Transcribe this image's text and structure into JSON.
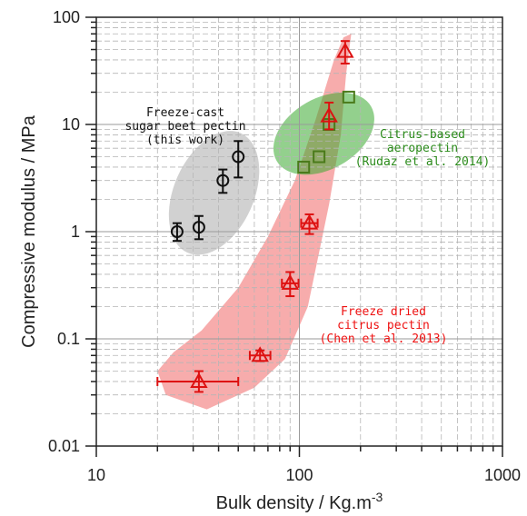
{
  "chart_data": {
    "type": "scatter",
    "title": "",
    "xlabel": "Bulk density / Kg.m",
    "xlabel_superscript": "-3",
    "ylabel": "Compressive modulus / MPa",
    "x_scale": "log",
    "y_scale": "log",
    "xlim": [
      10,
      1000
    ],
    "ylim": [
      0.01,
      100
    ],
    "grid": true,
    "x_ticks": [
      10,
      100,
      1000
    ],
    "x_tick_labels": [
      "10",
      "100",
      "1000"
    ],
    "y_ticks": [
      0.01,
      0.1,
      1,
      10,
      100
    ],
    "y_tick_labels": [
      "0.01",
      "0.1",
      "1",
      "10",
      "100"
    ],
    "series": [
      {
        "marker": "circle",
        "color": "#111111",
        "points": [
          {
            "x": 25,
            "y": 1.0,
            "xerr": [
              0,
              0
            ],
            "yerr": [
              0.82,
              1.2
            ]
          },
          {
            "x": 32,
            "y": 1.1,
            "xerr": [
              0,
              0
            ],
            "yerr": [
              0.85,
              1.4
            ]
          },
          {
            "x": 42,
            "y": 3.0,
            "xerr": [
              0,
              0
            ],
            "yerr": [
              2.3,
              3.8
            ]
          },
          {
            "x": 50,
            "y": 5.0,
            "xerr": [
              0,
              0
            ],
            "yerr": [
              3.2,
              7.0
            ]
          }
        ]
      },
      {
        "marker": "square",
        "color": "#4a7a1a",
        "points": [
          {
            "x": 105,
            "y": 4.0,
            "xerr": [
              0,
              0
            ],
            "yerr": [
              0,
              0
            ]
          },
          {
            "x": 125,
            "y": 5.0,
            "xerr": [
              0,
              0
            ],
            "yerr": [
              0,
              0
            ]
          },
          {
            "x": 140,
            "y": 10.0,
            "xerr": [
              0,
              0
            ],
            "yerr": [
              0,
              0
            ]
          },
          {
            "x": 175,
            "y": 18.0,
            "xerr": [
              0,
              0
            ],
            "yerr": [
              0,
              0
            ]
          }
        ]
      },
      {
        "marker": "triangle",
        "color": "#dd1111",
        "points": [
          {
            "x": 32,
            "y": 0.04,
            "xerr": [
              20,
              50
            ],
            "yerr": [
              0.032,
              0.05
            ]
          },
          {
            "x": 64,
            "y": 0.07,
            "xerr": [
              57,
              72
            ],
            "yerr": [
              0.062,
              0.078
            ]
          },
          {
            "x": 90,
            "y": 0.33,
            "xerr": [
              82,
              99
            ],
            "yerr": [
              0.25,
              0.42
            ]
          },
          {
            "x": 112,
            "y": 1.2,
            "xerr": [
              102,
              123
            ],
            "yerr": [
              0.95,
              1.45
            ]
          },
          {
            "x": 140,
            "y": 12.0,
            "xerr": [
              0,
              0
            ],
            "yerr": [
              9.0,
              16.0
            ]
          },
          {
            "x": 168,
            "y": 48.0,
            "xerr": [
              0,
              0
            ],
            "yerr": [
              37.0,
              60.0
            ]
          }
        ]
      }
    ],
    "annotations": [
      {
        "lines": [
          "Freeze-cast",
          "sugar beet pectin",
          "(this work)"
        ],
        "color": "#111111"
      },
      {
        "lines": [
          "Citrus-based",
          "aeropectin",
          "(Rudaz et al. 2014)"
        ],
        "color": "#2a8a1a"
      },
      {
        "lines": [
          "Freeze dried",
          "citrus pectin",
          "(Chen et al. 2013)"
        ],
        "color": "#ee1111"
      }
    ],
    "regions": [
      {
        "name": "sugar-beet",
        "color": "#9a9a9a",
        "opacity": 0.45
      },
      {
        "name": "aeropectin",
        "color": "#3aaa30",
        "opacity": 0.55
      },
      {
        "name": "freeze-dried",
        "color": "#f28080",
        "opacity": 0.65
      }
    ]
  }
}
